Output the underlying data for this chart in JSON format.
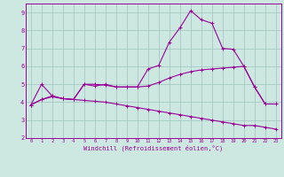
{
  "xlabel": "Windchill (Refroidissement éolien,°C)",
  "background_color": "#cce8e0",
  "grid_color": "#a0c4bc",
  "line_color": "#990099",
  "x": [
    0,
    1,
    2,
    3,
    4,
    5,
    6,
    7,
    8,
    9,
    10,
    11,
    12,
    13,
    14,
    15,
    16,
    17,
    18,
    19,
    20,
    21,
    22,
    23
  ],
  "line1": [
    3.85,
    5.0,
    4.35,
    4.2,
    4.15,
    5.0,
    4.9,
    5.0,
    4.85,
    4.85,
    4.85,
    5.85,
    6.05,
    7.35,
    8.15,
    9.1,
    8.6,
    8.4,
    7.0,
    6.95,
    6.0,
    4.85,
    3.9,
    3.9
  ],
  "line2": [
    3.85,
    4.15,
    4.35,
    4.2,
    4.15,
    5.0,
    5.0,
    4.95,
    4.85,
    4.85,
    4.85,
    4.9,
    5.1,
    5.35,
    5.55,
    5.7,
    5.8,
    5.85,
    5.9,
    5.95,
    6.0,
    4.85,
    3.9,
    3.9
  ],
  "line3": [
    3.85,
    4.15,
    4.3,
    4.2,
    4.15,
    4.1,
    4.05,
    4.0,
    3.9,
    3.8,
    3.7,
    3.6,
    3.5,
    3.4,
    3.3,
    3.2,
    3.1,
    3.0,
    2.9,
    2.8,
    2.7,
    2.7,
    2.6,
    2.5
  ],
  "xlim": [
    -0.5,
    23.5
  ],
  "ylim": [
    2.0,
    9.5
  ],
  "yticks": [
    2,
    3,
    4,
    5,
    6,
    7,
    8,
    9
  ],
  "xticks": [
    0,
    1,
    2,
    3,
    4,
    5,
    6,
    7,
    8,
    9,
    10,
    11,
    12,
    13,
    14,
    15,
    16,
    17,
    18,
    19,
    20,
    21,
    22,
    23
  ]
}
